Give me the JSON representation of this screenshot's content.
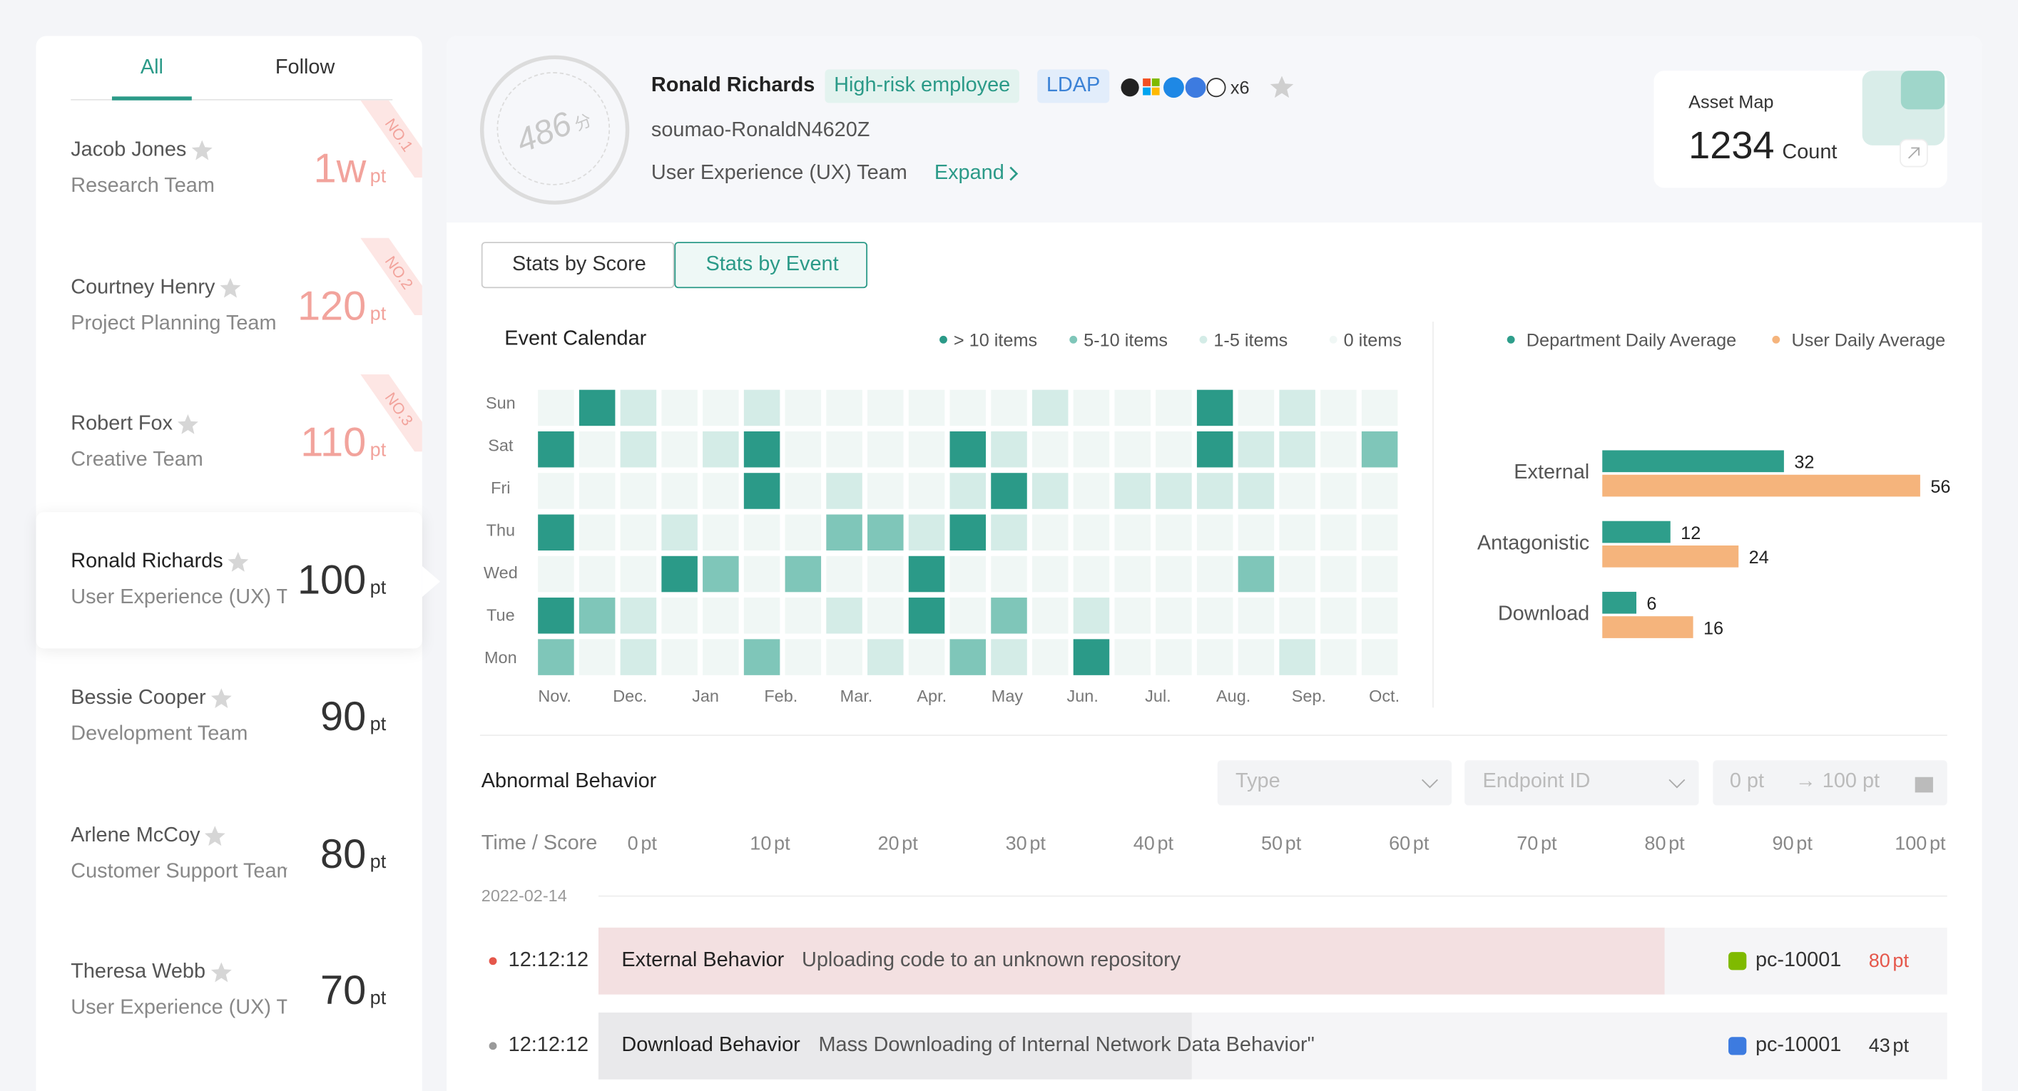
{
  "sidebar": {
    "tabs": [
      "All",
      "Follow"
    ],
    "unit": "pt",
    "ranks": [
      "NO.1",
      "NO.2",
      "NO.3"
    ],
    "selected": 3,
    "people": [
      {
        "name": "Jacob Jones",
        "team": "Research Team",
        "score": "1w"
      },
      {
        "name": "Courtney Henry",
        "team": "Project Planning Team",
        "score": 120
      },
      {
        "name": "Robert Fox",
        "team": "Creative Team",
        "score": 110
      },
      {
        "name": "Ronald Richards",
        "team": "User Experience (UX) Team",
        "score": 100
      },
      {
        "name": "Bessie Cooper",
        "team": "Development Team",
        "score": 90
      },
      {
        "name": "Arlene McCoy",
        "team": "Customer Support Team",
        "score": 80
      },
      {
        "name": "Theresa Webb",
        "team": "User Experience (UX) Team",
        "score": 70
      }
    ]
  },
  "profile": {
    "score": 486,
    "score_unit": "分",
    "name": "Ronald Richards",
    "tags": [
      "High-risk employee",
      "LDAP"
    ],
    "device_count": "x6",
    "account": "soumao-RonaldN4620Z",
    "team": "User Experience (UX) Team",
    "expand": "Expand"
  },
  "asset_map": {
    "title": "Asset Map",
    "value": 1234,
    "unit": "Count"
  },
  "stats_tabs": [
    "Stats by Score",
    "Stats by Event"
  ],
  "calendar": {
    "title": "Event Calendar",
    "colors": [
      "#f0f7f5",
      "#d4ece7",
      "#7fc6b9",
      "#2b9a88"
    ],
    "legend": [
      {
        "label": "> 10 items",
        "level": 3
      },
      {
        "label": "5-10 items",
        "level": 2
      },
      {
        "label": "1-5 items",
        "level": 1
      },
      {
        "label": "0 items",
        "level": 0
      }
    ],
    "days": [
      "Sun",
      "Sat",
      "Fri",
      "Thu",
      "Wed",
      "Tue",
      "Mon"
    ],
    "months": [
      "Nov.",
      "Dec.",
      "Jan",
      "Feb.",
      "Mar.",
      "Apr.",
      "May",
      "Jun.",
      "Jul.",
      "Aug.",
      "Sep.",
      "Oct."
    ],
    "levels": [
      [
        0,
        3,
        1,
        0,
        0,
        1,
        0,
        0,
        0,
        0,
        0,
        0,
        1,
        0,
        0,
        0,
        3,
        0,
        1,
        0,
        0
      ],
      [
        3,
        0,
        1,
        0,
        1,
        3,
        0,
        0,
        0,
        0,
        3,
        1,
        0,
        0,
        0,
        0,
        3,
        1,
        1,
        0,
        2
      ],
      [
        0,
        0,
        0,
        0,
        0,
        3,
        0,
        1,
        0,
        0,
        1,
        3,
        1,
        0,
        1,
        1,
        1,
        1,
        0,
        0,
        0
      ],
      [
        3,
        0,
        0,
        1,
        0,
        0,
        0,
        2,
        2,
        1,
        3,
        1,
        0,
        0,
        0,
        0,
        0,
        0,
        0,
        0,
        0
      ],
      [
        0,
        0,
        0,
        3,
        2,
        0,
        2,
        0,
        0,
        3,
        0,
        0,
        0,
        0,
        0,
        0,
        0,
        2,
        0,
        0,
        0
      ],
      [
        3,
        2,
        1,
        0,
        0,
        0,
        0,
        1,
        0,
        3,
        0,
        2,
        0,
        1,
        0,
        0,
        0,
        0,
        0,
        0,
        0
      ],
      [
        2,
        0,
        1,
        0,
        0,
        2,
        0,
        0,
        1,
        0,
        2,
        1,
        0,
        3,
        0,
        0,
        0,
        0,
        1,
        0,
        0
      ]
    ]
  },
  "averages": {
    "categories": [
      "External",
      "Antagonistic",
      "Download"
    ],
    "series": [
      {
        "name": "Department Daily Average",
        "color": "#2e9e8b",
        "values": [
          32,
          12,
          6
        ]
      },
      {
        "name": "User Daily Average",
        "color": "#f5b47c",
        "values": [
          56,
          24,
          16
        ]
      }
    ]
  },
  "abnormal": {
    "title": "Abnormal Behavior",
    "filters": [
      "Type",
      "Endpoint ID"
    ],
    "range": {
      "from": "0 pt",
      "arrow": "→",
      "to": "100 pt"
    },
    "axis_label": "Time / Score",
    "ticks": [
      0,
      10,
      20,
      30,
      40,
      50,
      60,
      70,
      80,
      90,
      100
    ],
    "unit": "pt",
    "date": "2022-02-14",
    "events": [
      {
        "time": "12:12:12",
        "type": "External Behavior",
        "description": "Uploading code to an unknown repository",
        "endpoint": "pc-10001",
        "score": 80,
        "color": "#e5574b"
      },
      {
        "time": "12:12:12",
        "type": "Download Behavior",
        "description": "Mass Downloading of Internal Network Data Behavior\"",
        "endpoint": "pc-10001",
        "score": 43,
        "color": "#9a9a9a"
      }
    ]
  }
}
